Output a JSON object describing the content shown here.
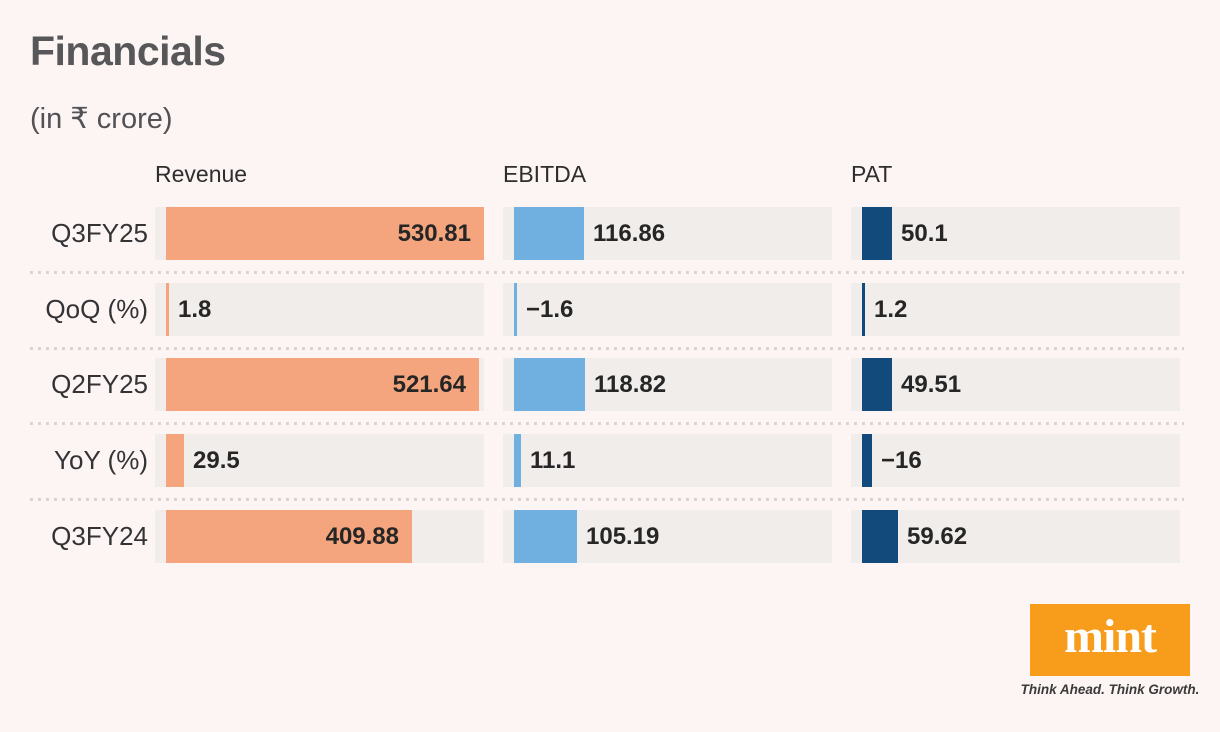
{
  "title": "Financials",
  "subtitle": "(in ₹ crore)",
  "chart_data": {
    "type": "bar",
    "orientation": "horizontal",
    "title": "Financials",
    "unit_label": "in ₹ crore",
    "categories": [
      "Q3FY25",
      "QoQ (%)",
      "Q2FY25",
      "YoY (%)",
      "Q3FY24"
    ],
    "series": [
      {
        "name": "Revenue",
        "values": [
          530.81,
          1.8,
          521.64,
          29.5,
          409.88
        ],
        "labels": [
          "530.81",
          "1.8",
          "521.64",
          "29.5",
          "409.88"
        ]
      },
      {
        "name": "EBITDA",
        "values": [
          116.86,
          -1.6,
          118.82,
          11.1,
          105.19
        ],
        "labels": [
          "116.86",
          "−1.6",
          "118.82",
          "11.1",
          "105.19"
        ]
      },
      {
        "name": "PAT",
        "values": [
          50.1,
          1.2,
          49.51,
          -16,
          59.62
        ],
        "labels": [
          "50.1",
          "1.2",
          "49.51",
          "−16",
          "59.62"
        ]
      }
    ],
    "value_axis_max": 530.81,
    "bar_colors": [
      "#f5a57d",
      "#6fb0e0",
      "#114a7b"
    ],
    "grid": false,
    "legend_position": "column-headers"
  },
  "logo": {
    "wordmark": "mint",
    "tagline": "Think Ahead. Think Growth.",
    "brand_color": "#f89c1c"
  },
  "colors": {
    "background": "#fdf5f3",
    "bar_track": "#f1edeb",
    "revenue_bar": "#f5a57d",
    "ebitda_bar": "#6fb0e0",
    "pat_bar": "#114a7b",
    "separator_dots": "#d9d3d1",
    "title_text": "#57575a",
    "value_text": "#262626"
  }
}
